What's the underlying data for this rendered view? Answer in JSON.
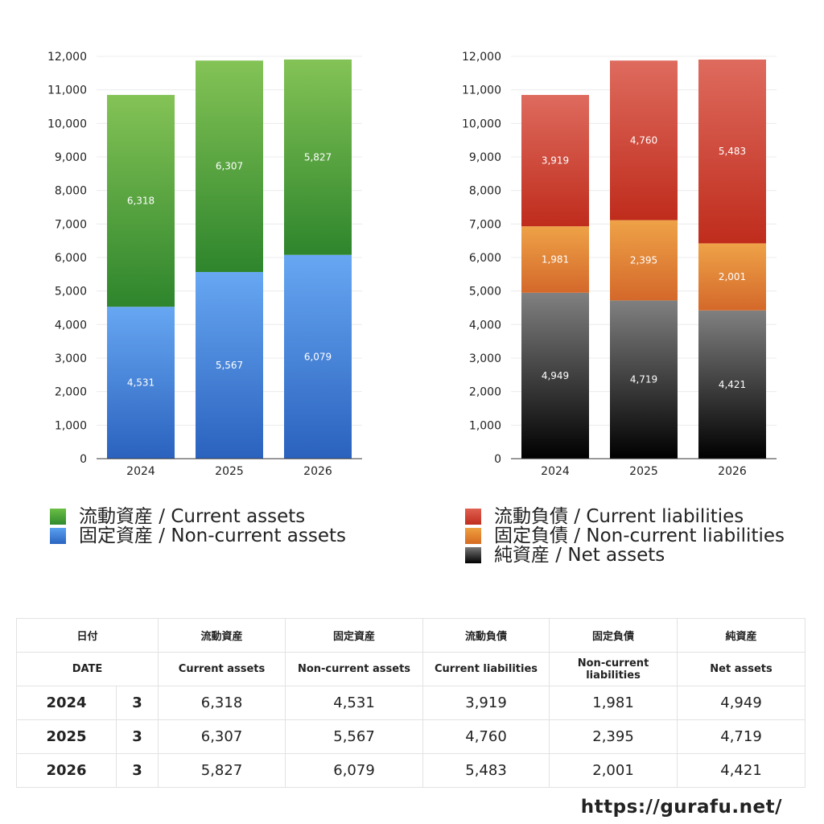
{
  "chart_data": [
    {
      "type": "bar",
      "stacked": true,
      "categories": [
        "2024",
        "2025",
        "2026"
      ],
      "ylim": [
        0,
        12000
      ],
      "yticks": [
        0,
        1000,
        2000,
        3000,
        4000,
        5000,
        6000,
        7000,
        8000,
        9000,
        10000,
        11000,
        12000
      ],
      "ytick_labels": [
        "0",
        "1,000",
        "2,000",
        "3,000",
        "4,000",
        "5,000",
        "6,000",
        "7,000",
        "8,000",
        "9,000",
        "10,000",
        "11,000",
        "12,000"
      ],
      "grid": true,
      "legend_position": "bottom",
      "series": [
        {
          "name": "固定資産 / Non-current assets",
          "values": [
            4531,
            5567,
            6079
          ],
          "labels": [
            "4,531",
            "5,567",
            "6,079"
          ],
          "color": "#4a8ee0"
        },
        {
          "name": "流動資産 / Current assets",
          "values": [
            6318,
            6307,
            5827
          ],
          "labels": [
            "6,318",
            "6,307",
            "5,827"
          ],
          "color": "#4caa3c"
        }
      ]
    },
    {
      "type": "bar",
      "stacked": true,
      "categories": [
        "2024",
        "2025",
        "2026"
      ],
      "ylim": [
        0,
        12000
      ],
      "yticks": [
        0,
        1000,
        2000,
        3000,
        4000,
        5000,
        6000,
        7000,
        8000,
        9000,
        10000,
        11000,
        12000
      ],
      "ytick_labels": [
        "0",
        "1,000",
        "2,000",
        "3,000",
        "4,000",
        "5,000",
        "6,000",
        "7,000",
        "8,000",
        "9,000",
        "10,000",
        "11,000",
        "12,000"
      ],
      "grid": true,
      "legend_position": "bottom",
      "series": [
        {
          "name": "純資産 / Net assets",
          "values": [
            4949,
            4719,
            4421
          ],
          "labels": [
            "4,949",
            "4,719",
            "4,421"
          ],
          "color": "#333333"
        },
        {
          "name": "固定負債 / Non-current liabilities",
          "values": [
            1981,
            2395,
            2001
          ],
          "labels": [
            "1,981",
            "2,395",
            "2,001"
          ],
          "color": "#e08a35"
        },
        {
          "name": "流動負債 / Current liabilities",
          "values": [
            3919,
            4760,
            5483
          ],
          "labels": [
            "3,919",
            "4,760",
            "5,483"
          ],
          "color": "#d04535"
        }
      ]
    }
  ],
  "legend_left": [
    "流動資産 / Current assets",
    "固定資産 / Non-current assets"
  ],
  "legend_right": [
    "流動負債 / Current liabilities",
    "固定負債 / Non-current liabilities",
    "純資産 / Net assets"
  ],
  "table": {
    "header_ja": {
      "date": "日付",
      "ca": "流動資産",
      "nca": "固定資産",
      "cl": "流動負債",
      "ncl": "固定負債",
      "na": "純資産"
    },
    "header_en": {
      "date": "DATE",
      "ca": "Current assets",
      "nca": "Non-current assets",
      "cl": "Current liabilities",
      "ncl": "Non-current liabilities",
      "na": "Net assets"
    },
    "rows": [
      {
        "year": "2024",
        "month": "3",
        "ca": "6,318",
        "nca": "4,531",
        "cl": "3,919",
        "ncl": "1,981",
        "na": "4,949"
      },
      {
        "year": "2025",
        "month": "3",
        "ca": "6,307",
        "nca": "5,567",
        "cl": "4,760",
        "ncl": "2,395",
        "na": "4,719"
      },
      {
        "year": "2026",
        "month": "3",
        "ca": "5,827",
        "nca": "6,079",
        "cl": "5,483",
        "ncl": "2,001",
        "na": "4,421"
      }
    ]
  },
  "site_url": "https://gurafu.net/"
}
